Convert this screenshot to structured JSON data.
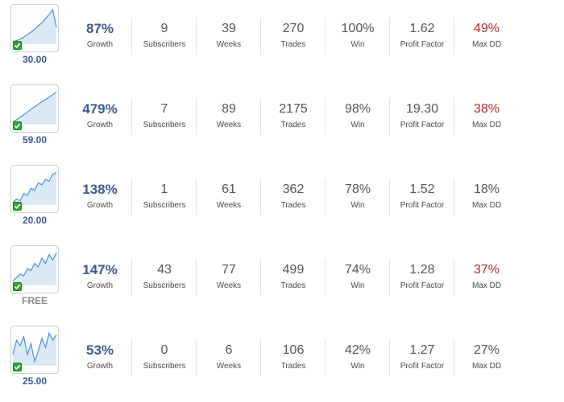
{
  "labels": {
    "growth": "Growth",
    "subscribers": "Subscribers",
    "weeks": "Weeks",
    "trades": "Trades",
    "win": "Win",
    "profit_factor": "Profit Factor",
    "max_dd": "Max DD"
  },
  "colors": {
    "accent": "#3a5a8c",
    "danger": "#b42a2a",
    "check": "#2fa82f"
  },
  "rows": [
    {
      "price": "30.00",
      "growth": "87%",
      "subscribers": "9",
      "weeks": "39",
      "trades": "270",
      "win": "100%",
      "profit_factor": "1.62",
      "max_dd": "49%",
      "max_dd_red": true,
      "spark": [
        0.05,
        0.08,
        0.12,
        0.18,
        0.25,
        0.32,
        0.4,
        0.5,
        0.58,
        0.7,
        0.82,
        0.95,
        0.45
      ]
    },
    {
      "price": "59.00",
      "growth": "479%",
      "subscribers": "7",
      "weeks": "89",
      "trades": "2175",
      "win": "98%",
      "profit_factor": "19.30",
      "max_dd": "38%",
      "max_dd_red": true,
      "spark": [
        0.05,
        0.12,
        0.2,
        0.28,
        0.36,
        0.45,
        0.52,
        0.6,
        0.67,
        0.74,
        0.82,
        0.9
      ]
    },
    {
      "price": "20.00",
      "growth": "138%",
      "subscribers": "1",
      "weeks": "61",
      "trades": "362",
      "win": "78%",
      "profit_factor": "1.52",
      "max_dd": "18%",
      "max_dd_red": false,
      "spark": [
        0.05,
        0.15,
        0.1,
        0.3,
        0.25,
        0.45,
        0.4,
        0.6,
        0.55,
        0.7,
        0.65,
        0.85,
        0.9
      ]
    },
    {
      "price": "FREE",
      "price_free": true,
      "growth": "147%",
      "subscribers": "43",
      "weeks": "77",
      "trades": "499",
      "win": "74%",
      "profit_factor": "1.28",
      "max_dd": "37%",
      "max_dd_red": true,
      "spark": [
        0.1,
        0.2,
        0.3,
        0.25,
        0.45,
        0.4,
        0.6,
        0.5,
        0.75,
        0.6,
        0.85,
        0.7,
        0.9
      ]
    },
    {
      "price": "25.00",
      "growth": "53%",
      "subscribers": "0",
      "weeks": "6",
      "trades": "106",
      "win": "42%",
      "profit_factor": "1.27",
      "max_dd": "27%",
      "max_dd_red": false,
      "spark": [
        0.3,
        0.7,
        0.55,
        0.8,
        0.3,
        0.6,
        0.1,
        0.4,
        0.75,
        0.5,
        0.9,
        0.7,
        0.85
      ]
    }
  ]
}
